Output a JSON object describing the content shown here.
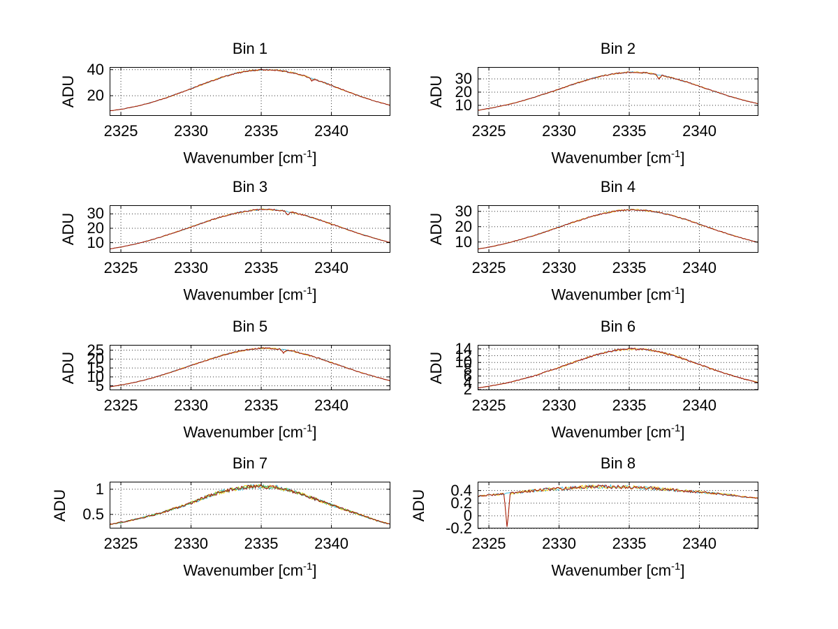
{
  "figure": {
    "background": "#ffffff",
    "grid_color": "#333333",
    "axis_color": "#000000",
    "text_color": "#000000"
  },
  "chart_data": [
    {
      "type": "line",
      "title": "Bin 1",
      "xlabel": {
        "text": "Wavenumber [cm",
        "sup": "-1",
        "suffix": "]"
      },
      "ylabel": "ADU",
      "x_ticks": [
        2325,
        2330,
        2335,
        2340
      ],
      "y_ticks": [
        20,
        40
      ],
      "xlim": [
        2324.2,
        2344.2
      ],
      "ylim": [
        4.5,
        42
      ],
      "x": [
        2324.2,
        2325.2,
        2326.2,
        2327.2,
        2328.2,
        2329.2,
        2330.2,
        2331.2,
        2332.2,
        2333.2,
        2334.2,
        2335.2,
        2336.2,
        2337.2,
        2338.2,
        2339.2,
        2340.2,
        2341.2,
        2342.2,
        2343.2,
        2344.2
      ],
      "values": [
        8.3,
        9.9,
        12.1,
        14.9,
        18.3,
        22.1,
        26.2,
        30.3,
        34.1,
        37.2,
        39.2,
        40.0,
        39.5,
        37.7,
        34.8,
        31.1,
        27.1,
        22.9,
        19.0,
        15.5,
        12.6
      ],
      "events": [
        {
          "x": 2338.6,
          "dy": -1.8
        }
      ],
      "series": [
        {
          "name": "scan-cyan",
          "color": "#45b8d8",
          "jitter": 0.5,
          "seed": 11
        },
        {
          "name": "scan-yellow",
          "color": "#f0c832",
          "jitter": 0.55,
          "seed": 12
        },
        {
          "name": "scan-red",
          "color": "#a01010",
          "jitter": 0.5,
          "seed": 13
        }
      ]
    },
    {
      "type": "line",
      "title": "Bin 2",
      "xlabel": {
        "text": "Wavenumber [cm",
        "sup": "-1",
        "suffix": "]"
      },
      "ylabel": "ADU",
      "x_ticks": [
        2325,
        2330,
        2335,
        2340
      ],
      "y_ticks": [
        10,
        20,
        30
      ],
      "xlim": [
        2324.2,
        2344.2
      ],
      "ylim": [
        2,
        39
      ],
      "x": [
        2324.2,
        2325.2,
        2326.2,
        2327.2,
        2328.2,
        2329.2,
        2330.2,
        2331.2,
        2332.2,
        2333.2,
        2334.2,
        2335.2,
        2336.2,
        2337.2,
        2338.2,
        2339.2,
        2340.2,
        2341.2,
        2342.2,
        2343.2,
        2344.2
      ],
      "values": [
        6.2,
        8.0,
        10.2,
        12.8,
        16.0,
        19.4,
        23.0,
        26.6,
        29.9,
        32.5,
        34.3,
        35.2,
        34.6,
        33.0,
        30.4,
        27.3,
        23.7,
        20.1,
        16.7,
        13.7,
        11.2
      ],
      "events": [
        {
          "x": 2337.1,
          "dy": -3.2
        }
      ],
      "series": [
        {
          "name": "scan-cyan",
          "color": "#45b8d8",
          "jitter": 0.45,
          "seed": 21
        },
        {
          "name": "scan-yellow",
          "color": "#f0c832",
          "jitter": 0.5,
          "seed": 22
        },
        {
          "name": "scan-red",
          "color": "#a01010",
          "jitter": 0.45,
          "seed": 23
        }
      ]
    },
    {
      "type": "line",
      "title": "Bin 3",
      "xlabel": {
        "text": "Wavenumber [cm",
        "sup": "-1",
        "suffix": "]"
      },
      "ylabel": "ADU",
      "x_ticks": [
        2325,
        2330,
        2335,
        2340
      ],
      "y_ticks": [
        10,
        20,
        30
      ],
      "xlim": [
        2324.2,
        2344.2
      ],
      "ylim": [
        3,
        36
      ],
      "x": [
        2324.2,
        2325.2,
        2326.2,
        2327.2,
        2328.2,
        2329.2,
        2330.2,
        2331.2,
        2332.2,
        2333.2,
        2334.2,
        2335.2,
        2336.2,
        2337.2,
        2338.2,
        2339.2,
        2340.2,
        2341.2,
        2342.2,
        2343.2,
        2344.2
      ],
      "values": [
        5.6,
        7.3,
        9.4,
        12.0,
        15.0,
        18.2,
        21.6,
        25.0,
        28.1,
        30.6,
        32.3,
        33.2,
        32.6,
        31.1,
        28.7,
        25.6,
        22.3,
        18.9,
        15.6,
        12.7,
        10.0
      ],
      "events": [
        {
          "x": 2336.9,
          "dy": -2.2
        }
      ],
      "series": [
        {
          "name": "scan-cyan",
          "color": "#45b8d8",
          "jitter": 0.45,
          "seed": 31
        },
        {
          "name": "scan-yellow",
          "color": "#f0c832",
          "jitter": 0.5,
          "seed": 32
        },
        {
          "name": "scan-red",
          "color": "#a01010",
          "jitter": 0.45,
          "seed": 33
        }
      ]
    },
    {
      "type": "line",
      "title": "Bin 4",
      "xlabel": {
        "text": "Wavenumber [cm",
        "sup": "-1",
        "suffix": "]"
      },
      "ylabel": "ADU",
      "x_ticks": [
        2325,
        2330,
        2335,
        2340
      ],
      "y_ticks": [
        10,
        20,
        30
      ],
      "xlim": [
        2324.2,
        2344.2
      ],
      "ylim": [
        3,
        34
      ],
      "x": [
        2324.2,
        2325.2,
        2326.2,
        2327.2,
        2328.2,
        2329.2,
        2330.2,
        2331.2,
        2332.2,
        2333.2,
        2334.2,
        2335.2,
        2336.2,
        2337.2,
        2338.2,
        2339.2,
        2340.2,
        2341.2,
        2342.2,
        2343.2,
        2344.2
      ],
      "values": [
        5.4,
        7.0,
        9.0,
        11.5,
        14.2,
        17.2,
        20.4,
        23.5,
        26.4,
        28.8,
        30.4,
        31.2,
        30.6,
        29.2,
        27.0,
        24.2,
        21.0,
        17.8,
        14.8,
        12.1,
        9.7
      ],
      "events": [],
      "series": [
        {
          "name": "scan-cyan",
          "color": "#45b8d8",
          "jitter": 0.4,
          "seed": 41
        },
        {
          "name": "scan-yellow",
          "color": "#f0c832",
          "jitter": 0.45,
          "seed": 42
        },
        {
          "name": "scan-red",
          "color": "#a01010",
          "jitter": 0.42,
          "seed": 43
        }
      ]
    },
    {
      "type": "line",
      "title": "Bin 5",
      "xlabel": {
        "text": "Wavenumber [cm",
        "sup": "-1",
        "suffix": "]"
      },
      "ylabel": "ADU",
      "x_ticks": [
        2325,
        2330,
        2335,
        2340
      ],
      "y_ticks": [
        5,
        10,
        15,
        20,
        25
      ],
      "xlim": [
        2324.2,
        2344.2
      ],
      "ylim": [
        2.5,
        28
      ],
      "x": [
        2324.2,
        2325.2,
        2326.2,
        2327.2,
        2328.2,
        2329.2,
        2330.2,
        2331.2,
        2332.2,
        2333.2,
        2334.2,
        2335.2,
        2336.2,
        2337.2,
        2338.2,
        2339.2,
        2340.2,
        2341.2,
        2342.2,
        2343.2,
        2344.2
      ],
      "values": [
        4.4,
        5.7,
        7.3,
        9.3,
        11.7,
        14.3,
        17.0,
        19.6,
        22.1,
        24.1,
        25.5,
        26.2,
        25.7,
        24.5,
        22.6,
        20.2,
        17.5,
        14.8,
        12.2,
        9.9,
        7.8
      ],
      "events": [
        {
          "x": 2336.6,
          "dy": -1.8
        }
      ],
      "series": [
        {
          "name": "scan-cyan",
          "color": "#45b8d8",
          "jitter": 0.35,
          "seed": 51
        },
        {
          "name": "scan-yellow",
          "color": "#f0c832",
          "jitter": 0.4,
          "seed": 52
        },
        {
          "name": "scan-red",
          "color": "#a01010",
          "jitter": 0.36,
          "seed": 53
        }
      ]
    },
    {
      "type": "line",
      "title": "Bin 6",
      "xlabel": {
        "text": "Wavenumber [cm",
        "sup": "-1",
        "suffix": "]"
      },
      "ylabel": "ADU",
      "x_ticks": [
        2325,
        2330,
        2335,
        2340
      ],
      "y_ticks": [
        2,
        4,
        6,
        8,
        10,
        12,
        14
      ],
      "xlim": [
        2324.2,
        2344.2
      ],
      "ylim": [
        1.8,
        15.2
      ],
      "x": [
        2324.2,
        2325.2,
        2326.2,
        2327.2,
        2328.2,
        2329.2,
        2330.2,
        2331.2,
        2332.2,
        2333.2,
        2334.2,
        2335.2,
        2336.2,
        2337.2,
        2338.2,
        2339.2,
        2340.2,
        2341.2,
        2342.2,
        2343.2,
        2344.2
      ],
      "values": [
        2.5,
        3.1,
        3.9,
        4.9,
        6.0,
        7.4,
        8.8,
        10.3,
        11.7,
        12.9,
        13.7,
        14.0,
        13.8,
        13.1,
        12.0,
        10.6,
        9.1,
        7.6,
        6.3,
        5.1,
        4.1
      ],
      "events": [],
      "series": [
        {
          "name": "scan-blue",
          "color": "#7799dd",
          "jitter": 0.22,
          "seed": 61
        },
        {
          "name": "scan-yellow",
          "color": "#f0c832",
          "jitter": 0.26,
          "seed": 62
        },
        {
          "name": "scan-red",
          "color": "#a01010",
          "jitter": 0.26,
          "seed": 63
        }
      ]
    },
    {
      "type": "line",
      "title": "Bin 7",
      "xlabel": {
        "text": "Wavenumber [cm",
        "sup": "-1",
        "suffix": "]"
      },
      "ylabel": "ADU",
      "x_ticks": [
        2325,
        2330,
        2335,
        2340
      ],
      "y_ticks": [
        0.5,
        1
      ],
      "xlim": [
        2324.2,
        2344.2
      ],
      "ylim": [
        0.22,
        1.15
      ],
      "x": [
        2324.2,
        2325.2,
        2326.2,
        2327.2,
        2328.2,
        2329.2,
        2330.2,
        2331.2,
        2332.2,
        2333.2,
        2334.2,
        2335.2,
        2336.2,
        2337.2,
        2338.2,
        2339.2,
        2340.2,
        2341.2,
        2342.2,
        2343.2,
        2344.2
      ],
      "values": [
        0.3,
        0.35,
        0.41,
        0.48,
        0.56,
        0.65,
        0.75,
        0.86,
        0.95,
        1.01,
        1.05,
        1.06,
        1.03,
        0.96,
        0.87,
        0.77,
        0.67,
        0.57,
        0.48,
        0.38,
        0.3
      ],
      "events": [],
      "series": [
        {
          "name": "scan-cyan",
          "color": "#3fc0e0",
          "jitter": 0.042,
          "seed": 71
        },
        {
          "name": "scan-yellow",
          "color": "#f5d020",
          "jitter": 0.04,
          "seed": 72
        },
        {
          "name": "scan-green",
          "color": "#55b44a",
          "jitter": 0.03,
          "seed": 74
        },
        {
          "name": "scan-red",
          "color": "#a01010",
          "jitter": 0.036,
          "seed": 73
        }
      ]
    },
    {
      "type": "line",
      "title": "Bin 8",
      "xlabel": {
        "text": "Wavenumber [cm",
        "sup": "-1",
        "suffix": "]"
      },
      "ylabel": "ADU",
      "x_ticks": [
        2325,
        2330,
        2335,
        2340
      ],
      "y_ticks": [
        -0.2,
        0,
        0.2,
        0.4
      ],
      "xlim": [
        2324.2,
        2344.2
      ],
      "ylim": [
        -0.2,
        0.54
      ],
      "x": [
        2324.2,
        2325.2,
        2326.2,
        2327.2,
        2328.2,
        2329.2,
        2330.2,
        2331.2,
        2332.2,
        2333.2,
        2334.2,
        2335.2,
        2336.2,
        2337.2,
        2338.2,
        2339.2,
        2340.2,
        2341.2,
        2342.2,
        2343.2,
        2344.2
      ],
      "values": [
        0.31,
        0.33,
        0.35,
        0.37,
        0.4,
        0.42,
        0.43,
        0.45,
        0.46,
        0.46,
        0.46,
        0.45,
        0.44,
        0.43,
        0.41,
        0.39,
        0.37,
        0.35,
        0.33,
        0.3,
        0.28
      ],
      "events": [
        {
          "x": 2326.3,
          "set": -0.2
        }
      ],
      "series": [
        {
          "name": "scan-cyan",
          "color": "#3fc0e0",
          "jitter": 0.03,
          "seed": 81
        },
        {
          "name": "scan-yellow",
          "color": "#f5d020",
          "jitter": 0.028,
          "seed": 82
        },
        {
          "name": "scan-red",
          "color": "#a01010",
          "jitter": 0.026,
          "seed": 83
        }
      ]
    }
  ]
}
